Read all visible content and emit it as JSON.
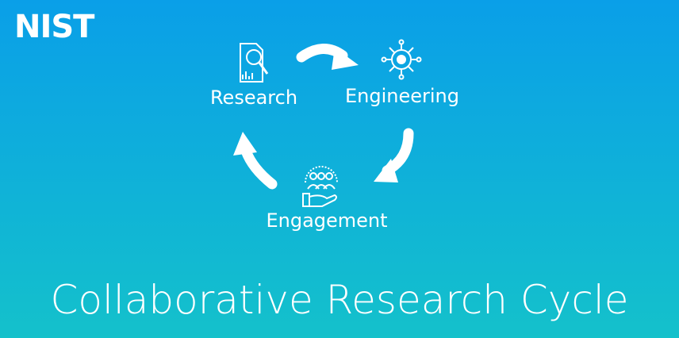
{
  "logo": "NIST",
  "nodes": [
    {
      "label": "Research"
    },
    {
      "label": "Engineering"
    },
    {
      "label": "Engagement"
    }
  ],
  "title": "Collaborative Research Cycle"
}
